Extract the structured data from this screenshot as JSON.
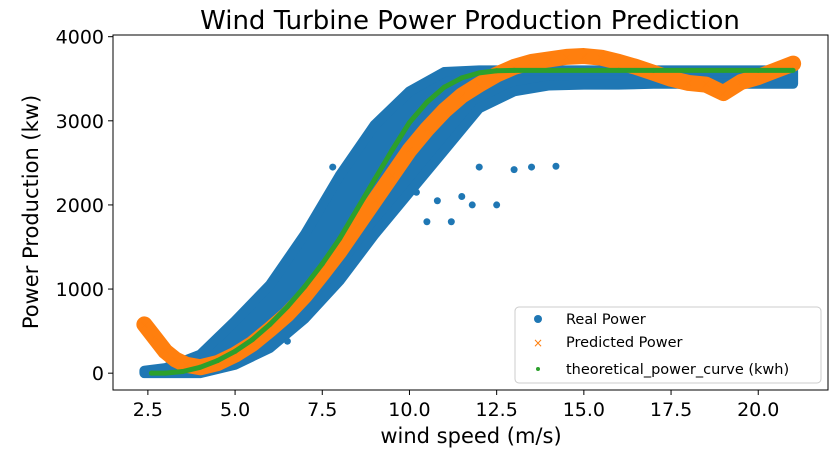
{
  "chart_data": {
    "type": "scatter",
    "title": "Wind Turbine Power Production Prediction",
    "xlabel": "wind speed (m/s)",
    "ylabel": "Power Production (kw)",
    "xlim": [
      1.5,
      22.0
    ],
    "ylim": [
      -200,
      4020
    ],
    "xticks": [
      "2.5",
      "5.0",
      "7.5",
      "10.0",
      "12.5",
      "15.0",
      "17.5",
      "20.0"
    ],
    "yticks": [
      "0",
      "1000",
      "2000",
      "3000",
      "4000"
    ],
    "grid": false,
    "legend_position": "bottom-right",
    "colors": {
      "real": "#1f77b4",
      "predicted": "#ff7f0e",
      "theoretical": "#2ca02c"
    },
    "series": [
      {
        "name": "Real Power",
        "marker": "circle",
        "range": {
          "x": [
            2.4,
            3,
            4,
            5,
            6,
            7,
            8,
            9,
            10,
            11,
            12,
            13,
            14,
            15,
            16,
            17,
            18,
            19,
            20,
            21
          ],
          "low": [
            0,
            0,
            0,
            100,
            300,
            650,
            1100,
            1650,
            2150,
            2650,
            3150,
            3350,
            3420,
            3430,
            3430,
            3440,
            3440,
            3440,
            3440,
            3440
          ],
          "high": [
            30,
            60,
            220,
            620,
            1050,
            1650,
            2350,
            2950,
            3350,
            3580,
            3600,
            3600,
            3600,
            3600,
            3600,
            3600,
            3600,
            3600,
            3600,
            3600
          ]
        },
        "points": [
          [
            2.4,
            20
          ],
          [
            6.5,
            380
          ],
          [
            7.8,
            2450
          ],
          [
            9.5,
            2400
          ],
          [
            9.8,
            2850
          ],
          [
            10.5,
            1800
          ],
          [
            10.8,
            2050
          ],
          [
            11.2,
            1800
          ],
          [
            11.8,
            2000
          ],
          [
            12.0,
            2450
          ],
          [
            12.5,
            2000
          ],
          [
            13.0,
            2420
          ],
          [
            13.5,
            2450
          ],
          [
            14.2,
            2460
          ],
          [
            11.5,
            2100
          ],
          [
            10.2,
            2150
          ]
        ]
      },
      {
        "name": "Predicted Power",
        "marker": "x",
        "points": [
          [
            2.4,
            580
          ],
          [
            2.7,
            420
          ],
          [
            3.0,
            260
          ],
          [
            3.3,
            160
          ],
          [
            3.6,
            100
          ],
          [
            4.0,
            70
          ],
          [
            4.5,
            120
          ],
          [
            5.0,
            220
          ],
          [
            5.5,
            350
          ],
          [
            6.0,
            520
          ],
          [
            6.5,
            700
          ],
          [
            7.0,
            920
          ],
          [
            7.5,
            1180
          ],
          [
            8.0,
            1450
          ],
          [
            8.5,
            1750
          ],
          [
            9.0,
            2050
          ],
          [
            9.5,
            2350
          ],
          [
            10.0,
            2650
          ],
          [
            10.5,
            2900
          ],
          [
            11.0,
            3120
          ],
          [
            11.5,
            3300
          ],
          [
            12.0,
            3430
          ],
          [
            12.5,
            3550
          ],
          [
            13.0,
            3640
          ],
          [
            13.5,
            3700
          ],
          [
            14.0,
            3730
          ],
          [
            14.5,
            3760
          ],
          [
            15.0,
            3770
          ],
          [
            15.5,
            3750
          ],
          [
            16.0,
            3700
          ],
          [
            16.5,
            3640
          ],
          [
            17.0,
            3570
          ],
          [
            17.5,
            3500
          ],
          [
            18.0,
            3450
          ],
          [
            18.5,
            3430
          ],
          [
            19.0,
            3330
          ],
          [
            19.5,
            3460
          ],
          [
            20.0,
            3520
          ],
          [
            20.5,
            3600
          ],
          [
            21.0,
            3680
          ]
        ]
      },
      {
        "name": "theoretical_power_curve (kwh)",
        "marker": "dot",
        "points": [
          [
            2.6,
            0
          ],
          [
            3.0,
            0
          ],
          [
            3.5,
            20
          ],
          [
            4.0,
            70
          ],
          [
            4.5,
            150
          ],
          [
            5.0,
            260
          ],
          [
            5.5,
            400
          ],
          [
            6.0,
            580
          ],
          [
            6.5,
            790
          ],
          [
            7.0,
            1030
          ],
          [
            7.5,
            1300
          ],
          [
            8.0,
            1600
          ],
          [
            8.5,
            1950
          ],
          [
            9.0,
            2300
          ],
          [
            9.5,
            2650
          ],
          [
            10.0,
            2980
          ],
          [
            10.5,
            3220
          ],
          [
            11.0,
            3400
          ],
          [
            11.5,
            3510
          ],
          [
            12.0,
            3570
          ],
          [
            12.5,
            3595
          ],
          [
            13.0,
            3600
          ],
          [
            14.0,
            3600
          ],
          [
            15.0,
            3600
          ],
          [
            16.0,
            3600
          ],
          [
            17.0,
            3600
          ],
          [
            18.0,
            3600
          ],
          [
            19.0,
            3600
          ],
          [
            20.0,
            3600
          ],
          [
            21.0,
            3600
          ]
        ]
      }
    ]
  }
}
